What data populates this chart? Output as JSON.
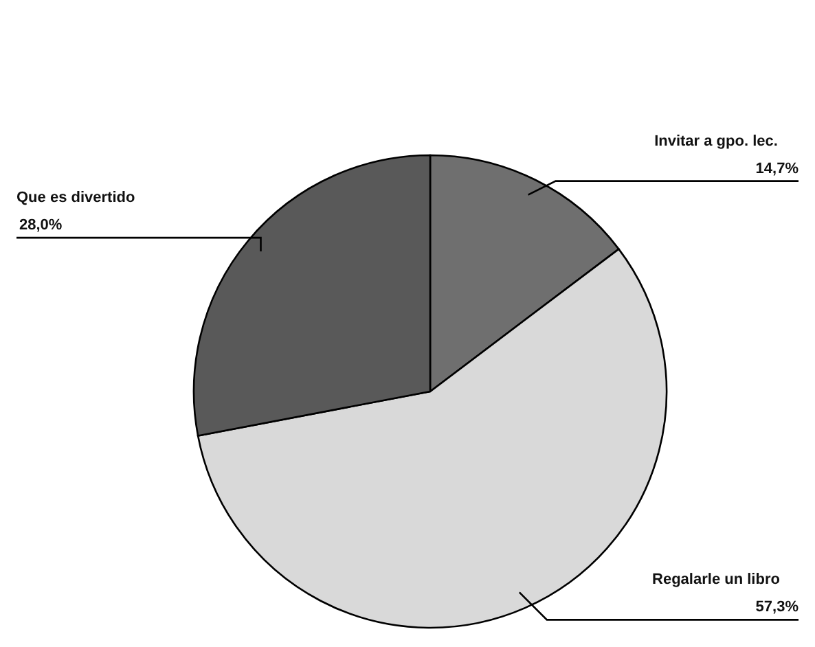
{
  "chart_data": {
    "type": "pie",
    "categories": [
      "Invitar a gpo. lec.",
      "Regalarle un libro",
      "Que es divertido"
    ],
    "values": [
      14.7,
      57.3,
      28.0
    ],
    "colors": [
      "#6f6f6f",
      "#d9d9d9",
      "#595959"
    ],
    "value_labels": [
      "14,7%",
      "57,3%",
      "28,0%"
    ],
    "legend": false
  }
}
